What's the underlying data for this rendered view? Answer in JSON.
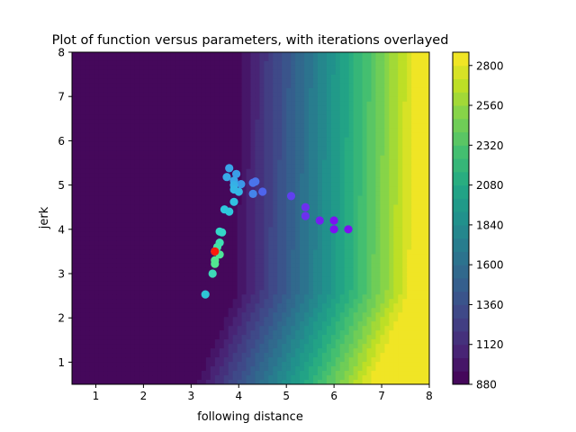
{
  "chart_data": {
    "type": "scatter",
    "title": "Plot of function versus parameters, with iterations overlayed",
    "xlabel": "following distance",
    "ylabel": "jerk",
    "xlim": [
      0.5,
      8
    ],
    "ylim": [
      0.5,
      8
    ],
    "xticks": [
      "1",
      "2",
      "3",
      "4",
      "5",
      "6",
      "7",
      "8"
    ],
    "yticks": [
      "1",
      "2",
      "3",
      "4",
      "5",
      "6",
      "7",
      "8"
    ],
    "grid": false,
    "background": {
      "type": "filled_contour",
      "colormap": "viridis",
      "description_range": [
        880,
        2880
      ],
      "colorbar_ticks": [
        "880",
        "1120",
        "1360",
        "1600",
        "1840",
        "2080",
        "2320",
        "2560",
        "2800"
      ]
    },
    "iterations": [
      {
        "x": 6.3,
        "y": 4.0,
        "color": "#7c12f0"
      },
      {
        "x": 6.0,
        "y": 4.0,
        "color": "#7c12f0"
      },
      {
        "x": 6.0,
        "y": 4.2,
        "color": "#7c12f0"
      },
      {
        "x": 5.7,
        "y": 4.2,
        "color": "#7420f0"
      },
      {
        "x": 5.4,
        "y": 4.3,
        "color": "#6c30ef"
      },
      {
        "x": 5.4,
        "y": 4.5,
        "color": "#6c30ef"
      },
      {
        "x": 5.1,
        "y": 4.75,
        "color": "#6040ee"
      },
      {
        "x": 4.5,
        "y": 4.85,
        "color": "#4e64ec"
      },
      {
        "x": 4.3,
        "y": 5.05,
        "color": "#4a74eb"
      },
      {
        "x": 4.35,
        "y": 5.08,
        "color": "#4a74eb"
      },
      {
        "x": 4.3,
        "y": 4.8,
        "color": "#4484ea"
      },
      {
        "x": 4.05,
        "y": 5.02,
        "color": "#3c98e8"
      },
      {
        "x": 3.95,
        "y": 5.25,
        "color": "#3a9ee8"
      },
      {
        "x": 3.9,
        "y": 5.1,
        "color": "#3aa4e8"
      },
      {
        "x": 3.8,
        "y": 5.38,
        "color": "#3aa4e8"
      },
      {
        "x": 3.75,
        "y": 5.18,
        "color": "#38aae7"
      },
      {
        "x": 3.9,
        "y": 5.0,
        "color": "#36b0e6"
      },
      {
        "x": 3.9,
        "y": 4.9,
        "color": "#34b6e5"
      },
      {
        "x": 4.0,
        "y": 4.85,
        "color": "#34b6e5"
      },
      {
        "x": 3.9,
        "y": 4.62,
        "color": "#30c0e2"
      },
      {
        "x": 3.8,
        "y": 4.4,
        "color": "#2ec8dc"
      },
      {
        "x": 3.7,
        "y": 4.45,
        "color": "#2ec8dc"
      },
      {
        "x": 3.65,
        "y": 3.93,
        "color": "#34d6c8"
      },
      {
        "x": 3.6,
        "y": 3.95,
        "color": "#34d6c8"
      },
      {
        "x": 3.6,
        "y": 3.7,
        "color": "#3ee0b4"
      },
      {
        "x": 3.55,
        "y": 3.6,
        "color": "#44e2a6"
      },
      {
        "x": 3.6,
        "y": 3.43,
        "color": "#4ee598"
      },
      {
        "x": 3.5,
        "y": 3.5,
        "color": "#52e690"
      },
      {
        "x": 3.5,
        "y": 3.3,
        "color": "#52e690"
      },
      {
        "x": 3.5,
        "y": 3.22,
        "color": "#52e690"
      },
      {
        "x": 3.45,
        "y": 3.0,
        "color": "#3ed8b8"
      },
      {
        "x": 3.3,
        "y": 2.53,
        "color": "#2ec4d6"
      },
      {
        "x": 3.5,
        "y": 3.5,
        "color": "#ff1a0a"
      }
    ]
  }
}
